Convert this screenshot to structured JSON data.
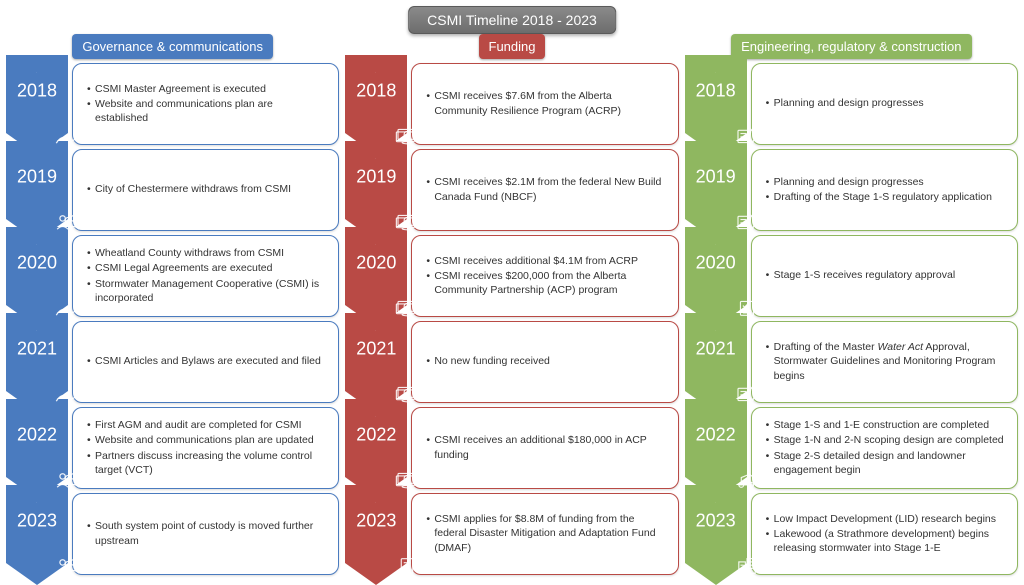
{
  "title": "CSMI Timeline 2018 - 2023",
  "colors": {
    "governance": "#4a7bbf",
    "funding": "#b94a45",
    "engineering": "#8fb760",
    "title_bg": "#757575"
  },
  "columns": [
    {
      "key": "governance",
      "header": "Governance & communications",
      "color": "#4a7bbf",
      "rows": [
        {
          "year": "2018",
          "icon": "pen",
          "items": [
            "CSMI Master Agreement is executed",
            "Website and communications plan are established"
          ]
        },
        {
          "year": "2019",
          "icon": "people",
          "items": [
            "City of Chestermere withdraws from CSMI"
          ]
        },
        {
          "year": "2020",
          "icon": "pen",
          "items": [
            "Wheatland County withdraws from CSMI",
            "CSMI Legal Agreements are executed",
            "Stormwater Management Cooperative (CSMI) is incorporated"
          ]
        },
        {
          "year": "2021",
          "icon": "pen",
          "items": [
            "CSMI Articles and Bylaws are executed and filed"
          ]
        },
        {
          "year": "2022",
          "icon": "people",
          "items": [
            "First AGM and audit are completed for CSMI",
            "Website and communications plan are updated",
            "Partners discuss increasing the volume control target (VCT)"
          ]
        },
        {
          "year": "2023",
          "icon": "people",
          "items": [
            "South system point of custody is moved further upstream"
          ]
        }
      ]
    },
    {
      "key": "funding",
      "header": "Funding",
      "color": "#b94a45",
      "rows": [
        {
          "year": "2018",
          "icon": "money",
          "items": [
            "CSMI receives $7.6M from the Alberta Community Resilience Program (ACRP)"
          ]
        },
        {
          "year": "2019",
          "icon": "money",
          "items": [
            "CSMI receives $2.1M from the federal New Build Canada Fund  (NBCF)"
          ]
        },
        {
          "year": "2020",
          "icon": "money",
          "items": [
            "CSMI receives additional $4.1M from ACRP",
            "CSMI receives $200,000  from the Alberta Community Partnership (ACP) program"
          ]
        },
        {
          "year": "2021",
          "icon": "money",
          "items": [
            "No new funding received"
          ]
        },
        {
          "year": "2022",
          "icon": "money",
          "items": [
            "CSMI receives an additional $180,000 in ACP funding"
          ]
        },
        {
          "year": "2023",
          "icon": "doc",
          "items": [
            "CSMI applies for $8.8M of funding from the federal Disaster Mitigation and Adaptation Fund (DMAF)"
          ]
        }
      ]
    },
    {
      "key": "engineering",
      "header": "Engineering, regulatory & construction",
      "color": "#8fb760",
      "rows": [
        {
          "year": "2018",
          "icon": "design",
          "items": [
            "Planning and design progresses"
          ]
        },
        {
          "year": "2019",
          "icon": "design",
          "items": [
            "Planning and design progresses",
            "Drafting of the Stage 1-S regulatory application"
          ]
        },
        {
          "year": "2020",
          "icon": "check",
          "items": [
            "Stage 1-S receives regulatory approval"
          ]
        },
        {
          "year": "2021",
          "icon": "design",
          "items": [
            "Drafting of the Master <em>Water Act</em> Approval, Stormwater Guidelines and Monitoring Program begins"
          ]
        },
        {
          "year": "2022",
          "icon": "construct",
          "items": [
            "Stage 1-S and 1-E construction are completed",
            "Stage 1-N and 2-N scoping design are completed",
            "Stage 2-S detailed design and landowner engagement begin"
          ]
        },
        {
          "year": "2023",
          "icon": "building",
          "items": [
            "Low Impact Development (LID) research begins",
            "Lakewood (a Strathmore development) begins releasing stormwater into Stage 1-E"
          ]
        }
      ]
    }
  ]
}
